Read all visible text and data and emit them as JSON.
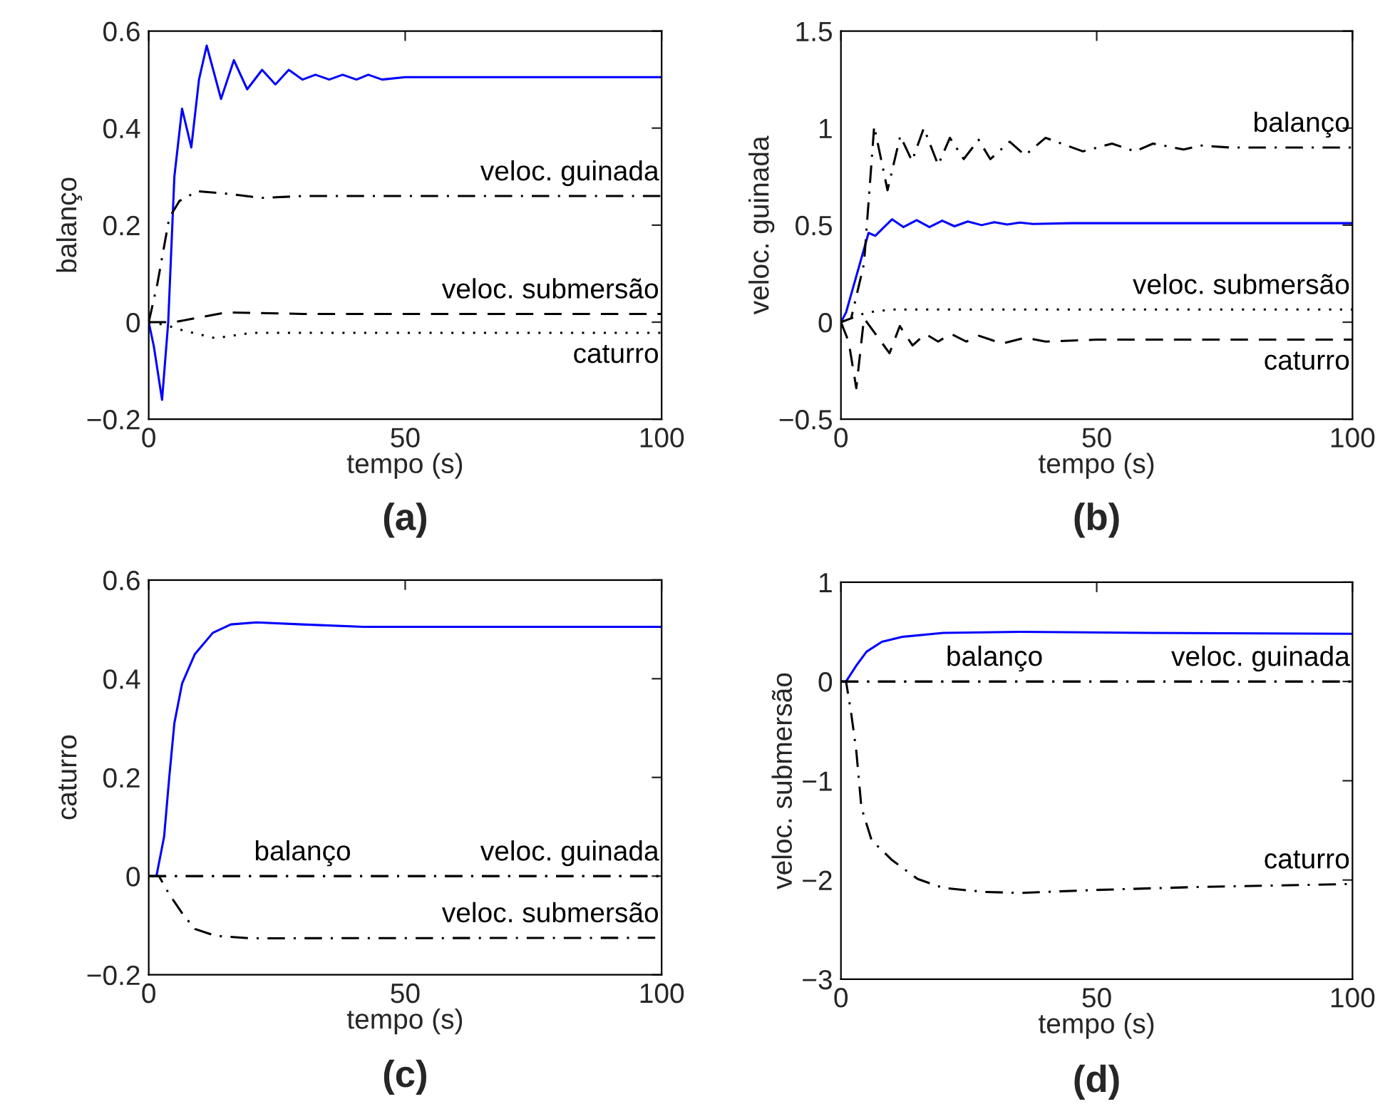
{
  "chart_data": [
    {
      "type": "line",
      "xlabel": "tempo (s)",
      "ylabel": "balanço",
      "xlim": [
        0,
        100
      ],
      "xticks": [
        0,
        50,
        100
      ],
      "ylim": [
        -0.2,
        0.6
      ],
      "yticks": [
        -0.2,
        0,
        0.2,
        0.4,
        0.6
      ],
      "grid": false,
      "legend": false,
      "series": [
        {
          "color": "#0000ff",
          "line_style": "solid",
          "x": [
            0,
            1,
            2.6,
            3.8,
            5,
            6.5,
            8.3,
            9.8,
            11.3,
            14.1,
            16.6,
            19.2,
            22.1,
            24.7,
            27.3,
            30,
            32.5,
            35.2,
            37.8,
            40.5,
            42.8,
            45.5,
            50,
            100
          ],
          "values": [
            0,
            -0.05,
            -0.16,
            0,
            0.3,
            0.44,
            0.36,
            0.5,
            0.57,
            0.46,
            0.54,
            0.48,
            0.52,
            0.49,
            0.52,
            0.5,
            0.51,
            0.5,
            0.51,
            0.5,
            0.51,
            0.5,
            0.505,
            0.505
          ]
        },
        {
          "name": "veloc. guinada",
          "color": "#000000",
          "line_style": "dashdot",
          "x": [
            0,
            1.7,
            4,
            6,
            9.5,
            16,
            22,
            30,
            100
          ],
          "values": [
            0,
            0.08,
            0.215,
            0.25,
            0.27,
            0.264,
            0.256,
            0.26,
            0.26
          ]
        },
        {
          "name": "veloc. submersão",
          "color": "#000000",
          "line_style": "dashed",
          "x": [
            0,
            5,
            10,
            15,
            30,
            100
          ],
          "values": [
            0,
            0.0,
            0.01,
            0.02,
            0.017,
            0.017
          ]
        },
        {
          "name": "caturro",
          "color": "#000000",
          "line_style": "dotted",
          "x": [
            0,
            3,
            7,
            13,
            20,
            100
          ],
          "values": [
            0,
            -0.005,
            -0.018,
            -0.033,
            -0.022,
            -0.022
          ]
        }
      ],
      "annotations": [
        "(a)"
      ]
    },
    {
      "type": "line",
      "xlabel": "tempo (s)",
      "ylabel": "veloc. guinada",
      "xlim": [
        0,
        100
      ],
      "xticks": [
        0,
        50,
        100
      ],
      "ylim": [
        -0.5,
        1.5
      ],
      "yticks": [
        -0.5,
        0,
        0.5,
        1,
        1.5
      ],
      "grid": false,
      "legend": false,
      "series": [
        {
          "color": "#0000ff",
          "line_style": "solid",
          "x": [
            0,
            1,
            5.4,
            6.7,
            10,
            12.2,
            14.8,
            17.3,
            19.8,
            22.2,
            24.8,
            27.5,
            30,
            32.5,
            35,
            37.5,
            45,
            100
          ],
          "values": [
            0,
            0.05,
            0.46,
            0.445,
            0.53,
            0.49,
            0.526,
            0.49,
            0.523,
            0.494,
            0.519,
            0.5,
            0.515,
            0.503,
            0.513,
            0.506,
            0.51,
            0.51
          ]
        },
        {
          "name": "balanço",
          "color": "#000000",
          "line_style": "dashdot",
          "x": [
            0,
            2,
            4.5,
            6.5,
            9.1,
            11.6,
            13.9,
            16.2,
            19,
            21.3,
            24,
            26.9,
            29.2,
            33,
            36,
            40,
            47.3,
            53,
            57.5,
            61,
            67,
            70.5,
            76,
            100
          ],
          "values": [
            0,
            0.02,
            0.3,
            1.01,
            0.68,
            0.96,
            0.83,
            1.0,
            0.81,
            0.95,
            0.84,
            0.94,
            0.84,
            0.93,
            0.86,
            0.95,
            0.88,
            0.92,
            0.88,
            0.92,
            0.89,
            0.91,
            0.9,
            0.9
          ]
        },
        {
          "name": "veloc. submersão",
          "color": "#000000",
          "line_style": "dotted",
          "x": [
            0,
            5,
            10,
            100
          ],
          "values": [
            0,
            0.05,
            0.065,
            0.065
          ]
        },
        {
          "name": "caturro",
          "color": "#000000",
          "line_style": "dashed",
          "x": [
            0,
            1.5,
            3,
            4.5,
            9.5,
            11.5,
            14,
            16.5,
            19,
            21.5,
            24.5,
            27,
            31.5,
            36,
            40,
            50,
            100
          ],
          "values": [
            0,
            -0.1,
            -0.34,
            0.02,
            -0.16,
            -0.02,
            -0.12,
            -0.06,
            -0.1,
            -0.06,
            -0.1,
            -0.07,
            -0.11,
            -0.08,
            -0.1,
            -0.09,
            -0.09
          ]
        }
      ],
      "annotations": [
        "(b)"
      ]
    },
    {
      "type": "line",
      "xlabel": "tempo (s)",
      "ylabel": "caturro",
      "xlim": [
        0,
        100
      ],
      "xticks": [
        0,
        50,
        100
      ],
      "ylim": [
        -0.2,
        0.6
      ],
      "yticks": [
        -0.2,
        0,
        0.2,
        0.4,
        0.6
      ],
      "grid": false,
      "legend": false,
      "series": [
        {
          "color": "#0000ff",
          "line_style": "solid",
          "x": [
            0,
            1.5,
            3,
            4,
            5,
            6.5,
            9,
            12.5,
            16,
            21,
            30,
            42,
            60,
            100
          ],
          "values": [
            0,
            0,
            0.08,
            0.2,
            0.31,
            0.39,
            0.45,
            0.493,
            0.51,
            0.514,
            0.51,
            0.505,
            0.505,
            0.505
          ]
        },
        {
          "name": "balanço",
          "color": "#000000",
          "line_style": "dashdot",
          "x": [
            0,
            100
          ],
          "values": [
            0,
            0
          ]
        },
        {
          "name": "veloc. guinada",
          "color": "#000000",
          "line_style": "dashdot",
          "x": [
            0,
            100
          ],
          "values": [
            0,
            0
          ]
        },
        {
          "name": "veloc. submersão",
          "color": "#000000",
          "line_style": "dashdot",
          "x": [
            0,
            2,
            3.9,
            6.7,
            9,
            13,
            20,
            100
          ],
          "values": [
            0,
            0,
            -0.035,
            -0.078,
            -0.107,
            -0.121,
            -0.126,
            -0.125
          ]
        }
      ],
      "annotations": [
        "(c)"
      ]
    },
    {
      "type": "line",
      "xlabel": "tempo (s)",
      "ylabel": "veloc. submersão",
      "xlim": [
        0,
        100
      ],
      "xticks": [
        0,
        50,
        100
      ],
      "ylim": [
        -3,
        1
      ],
      "yticks": [
        -3,
        -2,
        -1,
        0,
        1
      ],
      "grid": false,
      "legend": false,
      "series": [
        {
          "color": "#0000ff",
          "line_style": "solid",
          "x": [
            0,
            1,
            3,
            5,
            8,
            12,
            20,
            35,
            60,
            100
          ],
          "values": [
            0,
            0,
            0.16,
            0.3,
            0.4,
            0.45,
            0.49,
            0.5,
            0.49,
            0.48
          ]
        },
        {
          "name": "balanço",
          "color": "#000000",
          "line_style": "dashdot",
          "x": [
            0,
            100
          ],
          "values": [
            0,
            0
          ]
        },
        {
          "name": "veloc. guinada",
          "color": "#000000",
          "line_style": "dashdot",
          "x": [
            0,
            100
          ],
          "values": [
            0,
            0
          ]
        },
        {
          "name": "caturro",
          "color": "#000000",
          "line_style": "dashdot",
          "x": [
            0,
            1,
            2,
            3,
            4,
            6,
            10,
            15,
            20,
            28,
            35,
            50,
            70,
            100
          ],
          "values": [
            0,
            0,
            -0.32,
            -0.7,
            -1.27,
            -1.6,
            -1.8,
            -1.99,
            -2.08,
            -2.12,
            -2.13,
            -2.1,
            -2.07,
            -2.04
          ]
        }
      ],
      "annotations": [
        "(d)"
      ]
    }
  ]
}
